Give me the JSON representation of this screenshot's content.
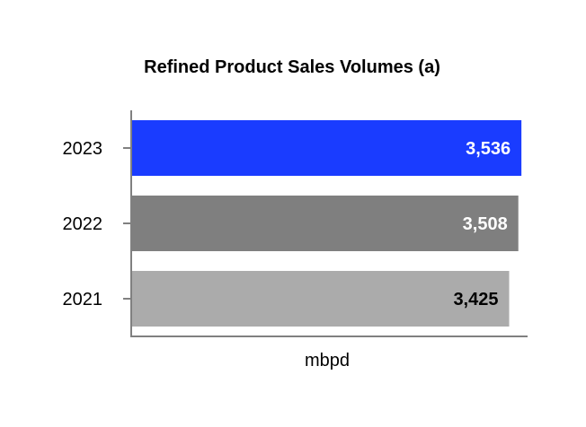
{
  "chart_data": {
    "type": "bar",
    "orientation": "horizontal",
    "title": "Refined Product Sales Volumes (a)",
    "xlabel": "mbpd",
    "ylabel": "",
    "categories": [
      "2023",
      "2022",
      "2021"
    ],
    "values": [
      3536,
      3508,
      3425
    ],
    "data_labels": [
      "3,536",
      "3,508",
      "3,425"
    ],
    "bar_colors": [
      "#1a3cff",
      "#7f7f7f",
      "#ababab"
    ],
    "label_colors": [
      "#ffffff",
      "#ffffff",
      "#000000"
    ],
    "xlim": [
      0,
      3600
    ],
    "grid": false,
    "legend": "none"
  }
}
